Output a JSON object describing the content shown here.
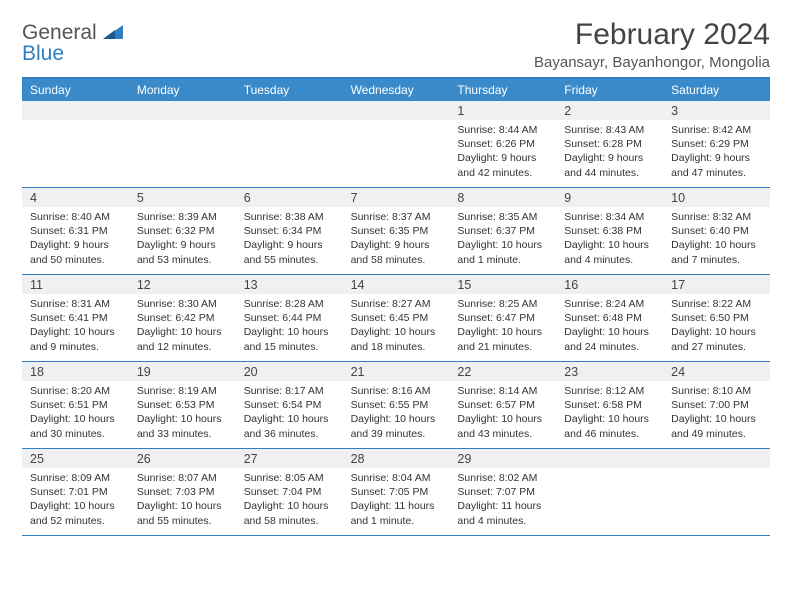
{
  "logo": {
    "line1": "General",
    "line2": "Blue"
  },
  "title": "February 2024",
  "subtitle": "Bayansayr, Bayanhongor, Mongolia",
  "colors": {
    "accent": "#2f7ec1",
    "header_bg": "#3a8ac9",
    "daynum_bg": "#eef0f1",
    "text": "#333333",
    "rule": "#2f7ec1"
  },
  "day_headers": [
    "Sunday",
    "Monday",
    "Tuesday",
    "Wednesday",
    "Thursday",
    "Friday",
    "Saturday"
  ],
  "weeks": [
    [
      null,
      null,
      null,
      null,
      {
        "n": "1",
        "sunrise": "Sunrise: 8:44 AM",
        "sunset": "Sunset: 6:26 PM",
        "day": "Daylight: 9 hours and 42 minutes."
      },
      {
        "n": "2",
        "sunrise": "Sunrise: 8:43 AM",
        "sunset": "Sunset: 6:28 PM",
        "day": "Daylight: 9 hours and 44 minutes."
      },
      {
        "n": "3",
        "sunrise": "Sunrise: 8:42 AM",
        "sunset": "Sunset: 6:29 PM",
        "day": "Daylight: 9 hours and 47 minutes."
      }
    ],
    [
      {
        "n": "4",
        "sunrise": "Sunrise: 8:40 AM",
        "sunset": "Sunset: 6:31 PM",
        "day": "Daylight: 9 hours and 50 minutes."
      },
      {
        "n": "5",
        "sunrise": "Sunrise: 8:39 AM",
        "sunset": "Sunset: 6:32 PM",
        "day": "Daylight: 9 hours and 53 minutes."
      },
      {
        "n": "6",
        "sunrise": "Sunrise: 8:38 AM",
        "sunset": "Sunset: 6:34 PM",
        "day": "Daylight: 9 hours and 55 minutes."
      },
      {
        "n": "7",
        "sunrise": "Sunrise: 8:37 AM",
        "sunset": "Sunset: 6:35 PM",
        "day": "Daylight: 9 hours and 58 minutes."
      },
      {
        "n": "8",
        "sunrise": "Sunrise: 8:35 AM",
        "sunset": "Sunset: 6:37 PM",
        "day": "Daylight: 10 hours and 1 minute."
      },
      {
        "n": "9",
        "sunrise": "Sunrise: 8:34 AM",
        "sunset": "Sunset: 6:38 PM",
        "day": "Daylight: 10 hours and 4 minutes."
      },
      {
        "n": "10",
        "sunrise": "Sunrise: 8:32 AM",
        "sunset": "Sunset: 6:40 PM",
        "day": "Daylight: 10 hours and 7 minutes."
      }
    ],
    [
      {
        "n": "11",
        "sunrise": "Sunrise: 8:31 AM",
        "sunset": "Sunset: 6:41 PM",
        "day": "Daylight: 10 hours and 9 minutes."
      },
      {
        "n": "12",
        "sunrise": "Sunrise: 8:30 AM",
        "sunset": "Sunset: 6:42 PM",
        "day": "Daylight: 10 hours and 12 minutes."
      },
      {
        "n": "13",
        "sunrise": "Sunrise: 8:28 AM",
        "sunset": "Sunset: 6:44 PM",
        "day": "Daylight: 10 hours and 15 minutes."
      },
      {
        "n": "14",
        "sunrise": "Sunrise: 8:27 AM",
        "sunset": "Sunset: 6:45 PM",
        "day": "Daylight: 10 hours and 18 minutes."
      },
      {
        "n": "15",
        "sunrise": "Sunrise: 8:25 AM",
        "sunset": "Sunset: 6:47 PM",
        "day": "Daylight: 10 hours and 21 minutes."
      },
      {
        "n": "16",
        "sunrise": "Sunrise: 8:24 AM",
        "sunset": "Sunset: 6:48 PM",
        "day": "Daylight: 10 hours and 24 minutes."
      },
      {
        "n": "17",
        "sunrise": "Sunrise: 8:22 AM",
        "sunset": "Sunset: 6:50 PM",
        "day": "Daylight: 10 hours and 27 minutes."
      }
    ],
    [
      {
        "n": "18",
        "sunrise": "Sunrise: 8:20 AM",
        "sunset": "Sunset: 6:51 PM",
        "day": "Daylight: 10 hours and 30 minutes."
      },
      {
        "n": "19",
        "sunrise": "Sunrise: 8:19 AM",
        "sunset": "Sunset: 6:53 PM",
        "day": "Daylight: 10 hours and 33 minutes."
      },
      {
        "n": "20",
        "sunrise": "Sunrise: 8:17 AM",
        "sunset": "Sunset: 6:54 PM",
        "day": "Daylight: 10 hours and 36 minutes."
      },
      {
        "n": "21",
        "sunrise": "Sunrise: 8:16 AM",
        "sunset": "Sunset: 6:55 PM",
        "day": "Daylight: 10 hours and 39 minutes."
      },
      {
        "n": "22",
        "sunrise": "Sunrise: 8:14 AM",
        "sunset": "Sunset: 6:57 PM",
        "day": "Daylight: 10 hours and 43 minutes."
      },
      {
        "n": "23",
        "sunrise": "Sunrise: 8:12 AM",
        "sunset": "Sunset: 6:58 PM",
        "day": "Daylight: 10 hours and 46 minutes."
      },
      {
        "n": "24",
        "sunrise": "Sunrise: 8:10 AM",
        "sunset": "Sunset: 7:00 PM",
        "day": "Daylight: 10 hours and 49 minutes."
      }
    ],
    [
      {
        "n": "25",
        "sunrise": "Sunrise: 8:09 AM",
        "sunset": "Sunset: 7:01 PM",
        "day": "Daylight: 10 hours and 52 minutes."
      },
      {
        "n": "26",
        "sunrise": "Sunrise: 8:07 AM",
        "sunset": "Sunset: 7:03 PM",
        "day": "Daylight: 10 hours and 55 minutes."
      },
      {
        "n": "27",
        "sunrise": "Sunrise: 8:05 AM",
        "sunset": "Sunset: 7:04 PM",
        "day": "Daylight: 10 hours and 58 minutes."
      },
      {
        "n": "28",
        "sunrise": "Sunrise: 8:04 AM",
        "sunset": "Sunset: 7:05 PM",
        "day": "Daylight: 11 hours and 1 minute."
      },
      {
        "n": "29",
        "sunrise": "Sunrise: 8:02 AM",
        "sunset": "Sunset: 7:07 PM",
        "day": "Daylight: 11 hours and 4 minutes."
      },
      null,
      null
    ]
  ]
}
